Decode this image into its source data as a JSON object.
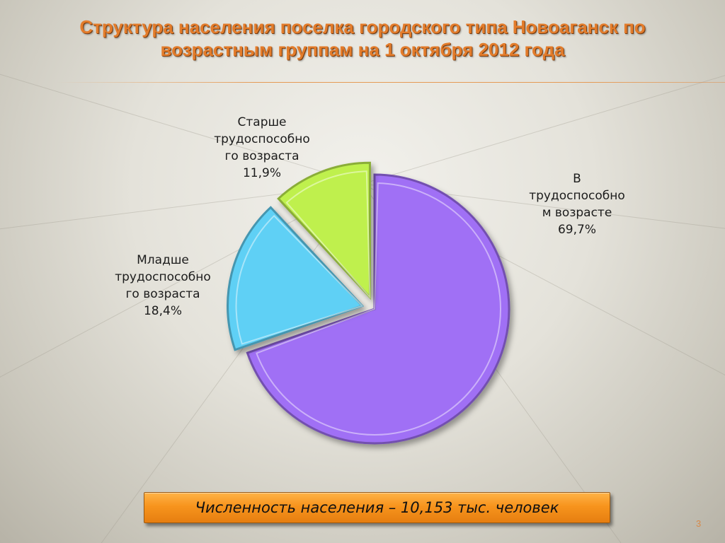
{
  "title": {
    "line1": "Структура населения поселка городского типа Новоаганск по",
    "line2": "возрастным группам на 1 октября 2012 года"
  },
  "chart_data": {
    "type": "pie",
    "title": "Структура населения поселка городского типа Новоаганск по возрастным группам на 1 октября 2012 года",
    "slices": [
      {
        "label_lines": [
          "В",
          "трудоспособно",
          "м возрасте"
        ],
        "value_label": "69,7%",
        "value": 69.7,
        "color": "#a06ff5",
        "exploded": false
      },
      {
        "label_lines": [
          "Младше",
          "трудоспособно",
          "го возраста"
        ],
        "value_label": "18,4%",
        "value": 18.4,
        "color": "#5fd0f5",
        "exploded": true
      },
      {
        "label_lines": [
          "Старше",
          "трудоспособно",
          "го возраста"
        ],
        "value_label": "11,9%",
        "value": 11.9,
        "color": "#bff04e",
        "exploded": true
      }
    ]
  },
  "footer": {
    "text": "Численность населения – 10,153 тыс. человек",
    "background": "#f7941d"
  },
  "page_number": "3"
}
